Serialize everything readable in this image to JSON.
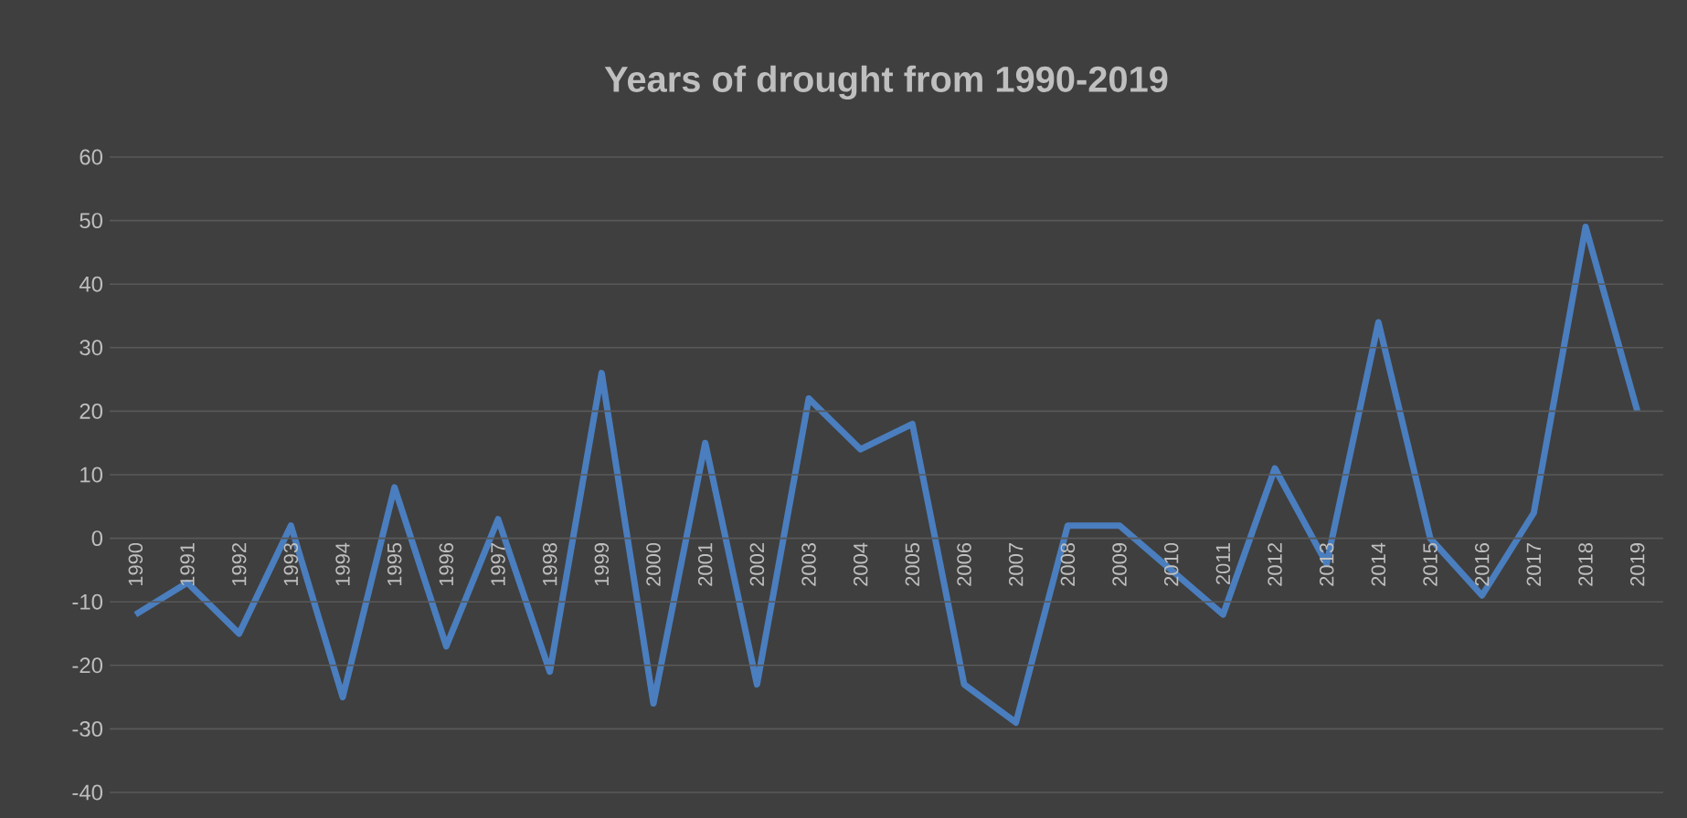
{
  "chart_data": {
    "type": "line",
    "title": "Years of drought  from 1990-2019",
    "categories": [
      "1990",
      "1991",
      "1992",
      "1993",
      "1994",
      "1995",
      "1996",
      "1997",
      "1998",
      "1999",
      "2000",
      "2001",
      "2002",
      "2003",
      "2004",
      "2005",
      "2006",
      "2007",
      "2008",
      "2009",
      "2010",
      "2011",
      "2012",
      "2013",
      "2014",
      "2015",
      "2016",
      "2017",
      "2018",
      "2019"
    ],
    "values": [
      -12,
      -7,
      -15,
      2,
      -25,
      8,
      -17,
      3,
      -21,
      26,
      -26,
      15,
      -23,
      22,
      14,
      18,
      -23,
      -29,
      2,
      2,
      -5,
      -12,
      11,
      -4,
      34,
      0,
      -9,
      4,
      49,
      20
    ],
    "color": "#4a7ebf",
    "ylim": [
      -40,
      60
    ],
    "yticks": [
      -40,
      -30,
      -20,
      -10,
      0,
      10,
      20,
      30,
      40,
      50,
      60
    ],
    "grid": "y",
    "marker": "none",
    "line_style": "solid"
  }
}
